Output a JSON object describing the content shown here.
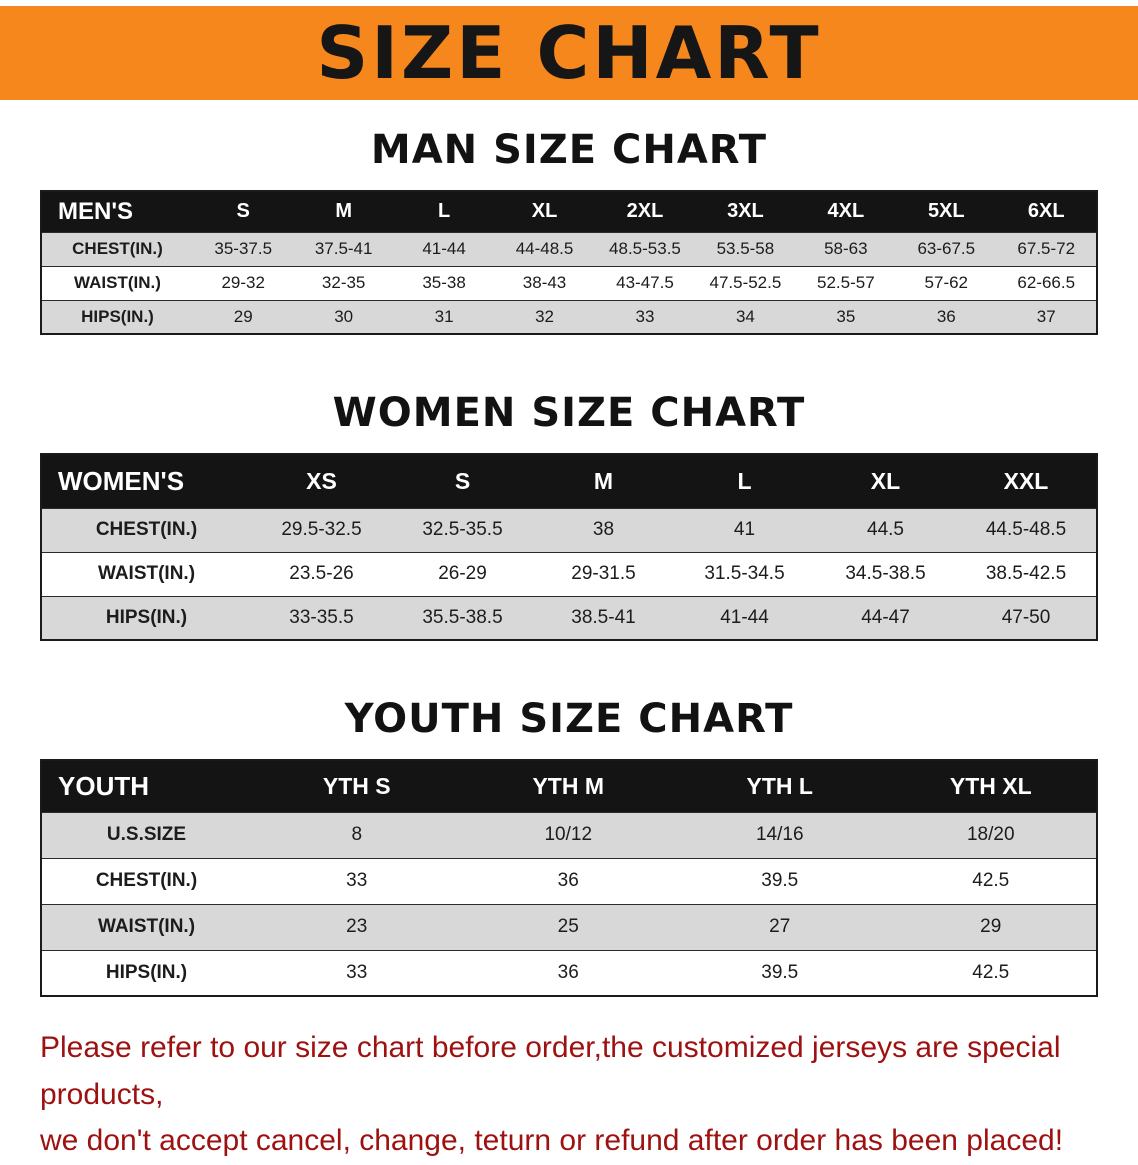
{
  "banner": {
    "title": "SIZE CHART"
  },
  "colors": {
    "banner_bg": "#f6871d",
    "table_header_bg": "#141414",
    "row_stripe": "#d8d8d8",
    "disclaimer_text": "#9e1111"
  },
  "sections": [
    {
      "heading": "MAN SIZE CHART",
      "table": {
        "header": [
          "MEN'S",
          "S",
          "M",
          "L",
          "XL",
          "2XL",
          "3XL",
          "4XL",
          "5XL",
          "6XL"
        ],
        "rows": [
          [
            "CHEST(IN.)",
            "35-37.5",
            "37.5-41",
            "41-44",
            "44-48.5",
            "48.5-53.5",
            "53.5-58",
            "58-63",
            "63-67.5",
            "67.5-72"
          ],
          [
            "WAIST(IN.)",
            "29-32",
            "32-35",
            "35-38",
            "38-43",
            "43-47.5",
            "47.5-52.5",
            "52.5-57",
            "57-62",
            "62-66.5"
          ],
          [
            "HIPS(IN.)",
            "29",
            "30",
            "31",
            "32",
            "33",
            "34",
            "35",
            "36",
            "37"
          ]
        ]
      }
    },
    {
      "heading": "WOMEN SIZE CHART",
      "table": {
        "header": [
          "WOMEN'S",
          "XS",
          "S",
          "M",
          "L",
          "XL",
          "XXL"
        ],
        "rows": [
          [
            "CHEST(IN.)",
            "29.5-32.5",
            "32.5-35.5",
            "38",
            "41",
            "44.5",
            "44.5-48.5"
          ],
          [
            "WAIST(IN.)",
            "23.5-26",
            "26-29",
            "29-31.5",
            "31.5-34.5",
            "34.5-38.5",
            "38.5-42.5"
          ],
          [
            "HIPS(IN.)",
            "33-35.5",
            "35.5-38.5",
            "38.5-41",
            "41-44",
            "44-47",
            "47-50"
          ]
        ]
      }
    },
    {
      "heading": "YOUTH SIZE CHART",
      "table": {
        "header": [
          "YOUTH",
          "YTH S",
          "YTH M",
          "YTH L",
          "YTH XL"
        ],
        "rows": [
          [
            "U.S.SIZE",
            "8",
            "10/12",
            "14/16",
            "18/20"
          ],
          [
            "CHEST(IN.)",
            "33",
            "36",
            "39.5",
            "42.5"
          ],
          [
            "WAIST(IN.)",
            "23",
            "25",
            "27",
            "29"
          ],
          [
            "HIPS(IN.)",
            "33",
            "36",
            "39.5",
            "42.5"
          ]
        ]
      }
    }
  ],
  "disclaimer": {
    "line1": "Please refer to our size chart before order,the customized jerseys are special products,",
    "line2": "we don't accept cancel, change, teturn or refund after order has been placed!"
  }
}
